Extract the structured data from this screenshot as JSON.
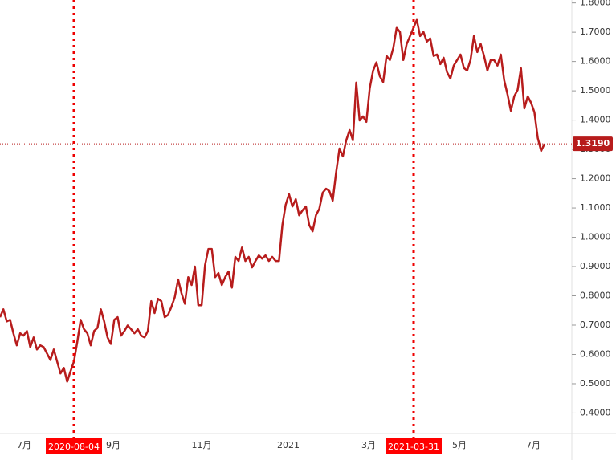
{
  "chart_data": {
    "type": "line",
    "series": [
      {
        "name": "Price",
        "color": "#b71c1c",
        "values": [
          0.727,
          0.754,
          0.713,
          0.718,
          0.672,
          0.631,
          0.672,
          0.664,
          0.68,
          0.625,
          0.658,
          0.617,
          0.631,
          0.625,
          0.603,
          0.581,
          0.617,
          0.576,
          0.535,
          0.554,
          0.507,
          0.543,
          0.576,
          0.644,
          0.718,
          0.686,
          0.672,
          0.631,
          0.68,
          0.691,
          0.754,
          0.713,
          0.658,
          0.636,
          0.718,
          0.727,
          0.664,
          0.68,
          0.699,
          0.686,
          0.672,
          0.686,
          0.664,
          0.658,
          0.68,
          0.782,
          0.741,
          0.79,
          0.782,
          0.727,
          0.735,
          0.762,
          0.795,
          0.856,
          0.809,
          0.773,
          0.864,
          0.837,
          0.9,
          0.768,
          0.768,
          0.905,
          0.96,
          0.96,
          0.864,
          0.878,
          0.837,
          0.864,
          0.883,
          0.828,
          0.933,
          0.919,
          0.965,
          0.919,
          0.933,
          0.897,
          0.919,
          0.938,
          0.927,
          0.938,
          0.919,
          0.933,
          0.919,
          0.919,
          1.042,
          1.111,
          1.147,
          1.105,
          1.13,
          1.075,
          1.092,
          1.105,
          1.042,
          1.02,
          1.075,
          1.097,
          1.152,
          1.166,
          1.158,
          1.125,
          1.221,
          1.303,
          1.276,
          1.331,
          1.366,
          1.331,
          1.528,
          1.399,
          1.413,
          1.394,
          1.509,
          1.569,
          1.597,
          1.55,
          1.53,
          1.619,
          1.605,
          1.646,
          1.715,
          1.701,
          1.605,
          1.66,
          1.687,
          1.715,
          1.742,
          1.687,
          1.701,
          1.668,
          1.679,
          1.619,
          1.624,
          1.591,
          1.613,
          1.564,
          1.542,
          1.586,
          1.605,
          1.624,
          1.578,
          1.569,
          1.605,
          1.687,
          1.632,
          1.66,
          1.619,
          1.569,
          1.605,
          1.605,
          1.586,
          1.624,
          1.536,
          1.487,
          1.432,
          1.481,
          1.503,
          1.577,
          1.44,
          1.481,
          1.459,
          1.427,
          1.339,
          1.295,
          1.319
        ]
      }
    ],
    "ylim": [
      0.33,
      1.81
    ],
    "yticks": [
      {
        "value": 0.4,
        "label": "0.4000"
      },
      {
        "value": 0.5,
        "label": "0.5000"
      },
      {
        "value": 0.6,
        "label": "0.6000"
      },
      {
        "value": 0.7,
        "label": "0.7000"
      },
      {
        "value": 0.8,
        "label": "0.8000"
      },
      {
        "value": 0.9,
        "label": "0.9000"
      },
      {
        "value": 1.0,
        "label": "1.0000"
      },
      {
        "value": 1.1,
        "label": "1.1000"
      },
      {
        "value": 1.2,
        "label": "1.2000"
      },
      {
        "value": 1.3,
        "label": "1.3000"
      },
      {
        "value": 1.4,
        "label": "1.4000"
      },
      {
        "value": 1.5,
        "label": "1.5000"
      },
      {
        "value": 1.6,
        "label": "1.6000"
      },
      {
        "value": 1.7,
        "label": "1.7000"
      },
      {
        "value": 1.8,
        "label": "1.8000"
      }
    ],
    "xtick_labels": [
      "7月",
      "9月",
      "11月",
      "2021",
      "3月",
      "5月",
      "7月"
    ],
    "markers": [
      "2020-08-04",
      "2021-03-31"
    ],
    "last_price": {
      "value": 1.319,
      "label": "1.3190"
    }
  }
}
